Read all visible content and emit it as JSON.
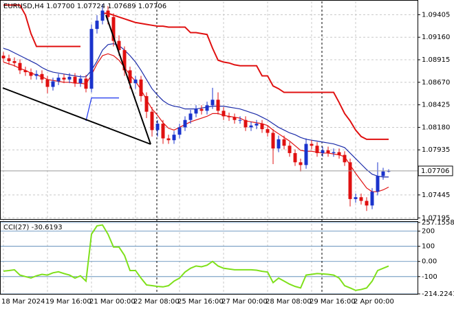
{
  "chart_data": [
    {
      "type": "candlestick",
      "title": "EURUSD,H4 1.07700 1.07724 1.07689 1.07706",
      "categories": [
        "18 Mar 2024",
        null,
        null,
        null,
        null,
        null,
        null,
        null,
        "19 Mar 16:00",
        null,
        null,
        null,
        null,
        null,
        null,
        null,
        "21 Mar 00:00",
        null,
        null,
        null,
        null,
        null,
        null,
        null,
        "22 Mar 08:00",
        null,
        null,
        null,
        null,
        null,
        null,
        null,
        "25 Mar 16:00",
        null,
        null,
        null,
        null,
        null,
        null,
        null,
        "27 Mar 00:00",
        null,
        null,
        null,
        null,
        null,
        null,
        null,
        "28 Mar 08:00",
        null,
        null,
        null,
        null,
        null,
        null,
        null,
        "29 Mar 16:00",
        null,
        null,
        null,
        null,
        null,
        null,
        null,
        "2 Apr 00:00",
        null,
        null,
        null,
        null,
        null,
        null
      ],
      "open": [
        1.0896,
        1.0893,
        1.089,
        1.0888,
        1.088,
        1.0878,
        1.0874,
        1.0876,
        1.087,
        1.0862,
        1.0868,
        1.0872,
        1.087,
        1.0873,
        1.0866,
        1.0871,
        1.086,
        1.0925,
        1.0934,
        1.0945,
        1.0938,
        1.0912,
        1.0902,
        1.088,
        1.0866,
        1.087,
        1.0852,
        1.0835,
        1.0815,
        1.0822,
        1.0806,
        1.0804,
        1.081,
        1.0818,
        1.0826,
        1.0833,
        1.0838,
        1.0836,
        1.0842,
        1.0848,
        1.0836,
        1.083,
        1.0829,
        1.0826,
        1.0826,
        1.0818,
        1.082,
        1.0822,
        1.0816,
        1.0812,
        1.0795,
        1.0805,
        1.0798,
        1.079,
        1.078,
        1.0777,
        1.08,
        1.0798,
        1.079,
        1.0793,
        1.079,
        1.0791,
        1.0788,
        1.078,
        1.074,
        1.0742,
        1.0738,
        1.0733,
        1.0748,
        1.0765,
        1.077
      ],
      "high": [
        1.09,
        1.0897,
        1.0894,
        1.0892,
        1.0884,
        1.0882,
        1.088,
        1.088,
        1.0874,
        1.0872,
        1.0876,
        1.0876,
        1.0877,
        1.0877,
        1.0875,
        1.0875,
        1.093,
        1.094,
        1.0952,
        1.095,
        1.0942,
        1.0918,
        1.0906,
        1.0884,
        1.0874,
        1.0874,
        1.0856,
        1.084,
        1.0826,
        1.0826,
        1.081,
        1.0814,
        1.0822,
        1.083,
        1.0837,
        1.0842,
        1.0842,
        1.0846,
        1.0861,
        1.0856,
        1.084,
        1.0834,
        1.0833,
        1.083,
        1.083,
        1.0824,
        1.0826,
        1.0826,
        1.082,
        1.0816,
        1.0809,
        1.0809,
        1.0802,
        1.0794,
        1.0784,
        1.0806,
        1.0804,
        1.0802,
        1.0797,
        1.0797,
        1.0795,
        1.0795,
        1.0792,
        1.0784,
        1.0746,
        1.0746,
        1.0742,
        1.0752,
        1.078,
        1.0774,
        1.07724
      ],
      "low": [
        1.0889,
        1.0886,
        1.0884,
        1.0876,
        1.0874,
        1.087,
        1.087,
        1.0866,
        1.0855,
        1.0858,
        1.0864,
        1.0866,
        1.0866,
        1.0862,
        1.0862,
        1.0856,
        1.0856,
        1.092,
        1.093,
        1.093,
        1.0906,
        1.0896,
        1.0874,
        1.086,
        1.086,
        1.0846,
        1.0828,
        1.0808,
        1.0808,
        1.08,
        1.08,
        1.08,
        1.0806,
        1.0814,
        1.0822,
        1.0829,
        1.0832,
        1.0832,
        1.0838,
        1.0832,
        1.0826,
        1.0825,
        1.0822,
        1.0822,
        1.0814,
        1.0814,
        1.0816,
        1.0812,
        1.0808,
        1.0778,
        1.0791,
        1.0794,
        1.0786,
        1.0776,
        1.077,
        1.0773,
        1.0794,
        1.0786,
        1.0786,
        1.0786,
        1.0786,
        1.0784,
        1.0776,
        1.0732,
        1.0736,
        1.0734,
        1.0727,
        1.0729,
        1.0744,
        1.0761,
        1.07689
      ],
      "close": [
        1.0893,
        1.089,
        1.0888,
        1.088,
        1.0878,
        1.0874,
        1.0876,
        1.087,
        1.0862,
        1.0868,
        1.0872,
        1.087,
        1.0873,
        1.0866,
        1.0871,
        1.086,
        1.0925,
        1.0934,
        1.0945,
        1.0938,
        1.0912,
        1.0902,
        1.088,
        1.0866,
        1.087,
        1.0852,
        1.0835,
        1.0815,
        1.0822,
        1.0806,
        1.0804,
        1.081,
        1.0818,
        1.0826,
        1.0833,
        1.0838,
        1.0836,
        1.0842,
        1.0848,
        1.0836,
        1.083,
        1.0829,
        1.0826,
        1.0826,
        1.0818,
        1.082,
        1.0822,
        1.0816,
        1.0812,
        1.0795,
        1.0805,
        1.0798,
        1.079,
        1.078,
        1.0777,
        1.08,
        1.0798,
        1.079,
        1.0793,
        1.079,
        1.0791,
        1.0788,
        1.078,
        1.074,
        1.0742,
        1.0738,
        1.0733,
        1.0748,
        1.0765,
        1.077,
        1.07706
      ],
      "up_color": "#1a33cc",
      "down_color": "#e01010",
      "series": [
        {
          "color": "#1a2aa8",
          "values": [
            1.0904,
            1.0902,
            1.0899,
            1.0896,
            1.0893,
            1.089,
            1.0887,
            1.0883,
            1.088,
            1.0878,
            1.0877,
            1.0876,
            1.0875,
            1.0874,
            1.0873,
            1.0873,
            1.088,
            1.089,
            1.0902,
            1.0908,
            1.0909,
            1.0907,
            1.0902,
            1.0896,
            1.0889,
            1.088,
            1.087,
            1.086,
            1.0853,
            1.0847,
            1.0843,
            1.0841,
            1.084,
            1.0838,
            1.0838,
            1.0838,
            1.0839,
            1.084,
            1.0841,
            1.0841,
            1.0841,
            1.084,
            1.0839,
            1.0838,
            1.0836,
            1.0834,
            1.0832,
            1.0829,
            1.0826,
            1.0822,
            1.0818,
            1.0815,
            1.0812,
            1.081,
            1.0807,
            1.0805,
            1.0804,
            1.0803,
            1.0802,
            1.0801,
            1.08,
            1.0798,
            1.0796,
            1.079,
            1.0784,
            1.0778,
            1.0772,
            1.0767,
            1.0765,
            1.0764,
            1.0764
          ]
        },
        {
          "color": "#e01010",
          "values": [
            1.0889,
            1.0887,
            1.0885,
            1.0882,
            1.088,
            1.0877,
            1.0875,
            1.0873,
            1.087,
            1.0869,
            1.0868,
            1.0867,
            1.0867,
            1.0866,
            1.0866,
            1.0865,
            1.0875,
            1.0887,
            1.0896,
            1.0898,
            1.0896,
            1.0891,
            1.0883,
            1.0875,
            1.0868,
            1.0859,
            1.0848,
            1.0838,
            1.0831,
            1.0823,
            1.0817,
            1.0815,
            1.0818,
            1.0821,
            1.0824,
            1.0826,
            1.0828,
            1.083,
            1.0833,
            1.0833,
            1.0831,
            1.083,
            1.0829,
            1.0828,
            1.0825,
            1.0824,
            1.0823,
            1.0822,
            1.082,
            1.0815,
            1.0811,
            1.0807,
            1.0803,
            1.0798,
            1.0793,
            1.0792,
            1.0792,
            1.0791,
            1.079,
            1.079,
            1.0789,
            1.0788,
            1.0786,
            1.0777,
            1.0768,
            1.076,
            1.0752,
            1.0748,
            1.0748,
            1.075,
            1.0753
          ]
        },
        {
          "color": "#e01010",
          "values": [
            1.0951,
            1.0951,
            1.0951,
            1.0951,
            1.094,
            1.092,
            1.0906,
            1.0906,
            1.0906,
            1.0906,
            1.0906,
            1.0906,
            1.0906,
            1.0906,
            1.0906,
            null,
            null,
            null,
            1.0942,
            1.0942,
            1.094,
            1.0938,
            1.0936,
            1.0934,
            1.0932,
            1.0931,
            1.093,
            1.0929,
            1.0928,
            1.0928,
            1.0927,
            1.0927,
            1.0927,
            1.0927,
            1.0921,
            1.0921,
            1.092,
            1.0919,
            1.0904,
            1.0891,
            1.0889,
            1.0888,
            1.0886,
            1.0885,
            1.0885,
            1.0885,
            1.0885,
            1.0874,
            1.0874,
            1.0863,
            1.086,
            1.0856,
            1.0856,
            1.0856,
            1.0856,
            1.0856,
            1.0856,
            1.0856,
            1.0856,
            1.0856,
            1.0856,
            1.0845,
            1.0833,
            1.0825,
            1.0815,
            1.0808,
            1.0805,
            1.0805,
            1.0805,
            1.0805,
            1.0805
          ]
        },
        {
          "color": "#1a33ee",
          "values": [
            null,
            null,
            null,
            null,
            null,
            null,
            null,
            null,
            null,
            null,
            null,
            null,
            null,
            null,
            null,
            1.0825,
            1.085,
            1.085,
            1.085,
            1.085,
            1.085,
            1.085,
            null,
            null,
            null,
            null,
            null,
            null,
            null,
            null,
            null,
            null,
            null,
            null,
            null,
            null,
            null,
            null,
            null,
            null,
            null,
            null,
            null,
            null,
            null,
            null,
            null,
            null,
            null,
            null,
            null,
            null,
            null,
            null,
            null,
            null,
            null,
            null,
            null,
            null,
            null,
            null,
            null,
            null,
            null,
            null,
            null,
            null,
            null,
            null,
            null
          ]
        }
      ],
      "ylim": [
        1.0719,
        1.0955
      ],
      "yticks": [
        1.09405,
        {
          "value": 1.0916,
          "label": "1.09160"
        },
        1.08915,
        {
          "value": 1.0867,
          "label": "1.08670"
        },
        1.08425,
        {
          "value": 1.0818,
          "label": "1.08180"
        },
        1.07935,
        1.07445,
        1.07195
      ],
      "grid": true
    },
    {
      "type": "line",
      "title": "CCI(27)",
      "color": "#7ee01a",
      "values": [
        -64,
        -60,
        -55,
        -90,
        -100,
        -109,
        -95,
        -85,
        -90,
        -75,
        -68,
        -80,
        -90,
        -110,
        -95,
        -130,
        180,
        235,
        241,
        180,
        95,
        95,
        40,
        -60,
        -60,
        -110,
        -155,
        -160,
        -165,
        -168,
        -160,
        -130,
        -110,
        -70,
        -45,
        -30,
        -35,
        -25,
        0,
        -30,
        -45,
        -50,
        -55,
        -55,
        -55,
        -55,
        -58,
        -65,
        -70,
        -140,
        -110,
        -130,
        -150,
        -165,
        -175,
        -90,
        -85,
        -80,
        -82,
        -85,
        -90,
        -110,
        -160,
        -175,
        -191,
        -185,
        -175,
        -130,
        -60,
        -45,
        -30.6193
      ],
      "ylim": [
        -214.2241,
        257.1558
      ],
      "yticks": [
        257.1558,
        200,
        100,
        {
          "value": 0,
          "label": "0.00"
        },
        -100,
        -214.2241
      ],
      "grid": true
    }
  ]
}
